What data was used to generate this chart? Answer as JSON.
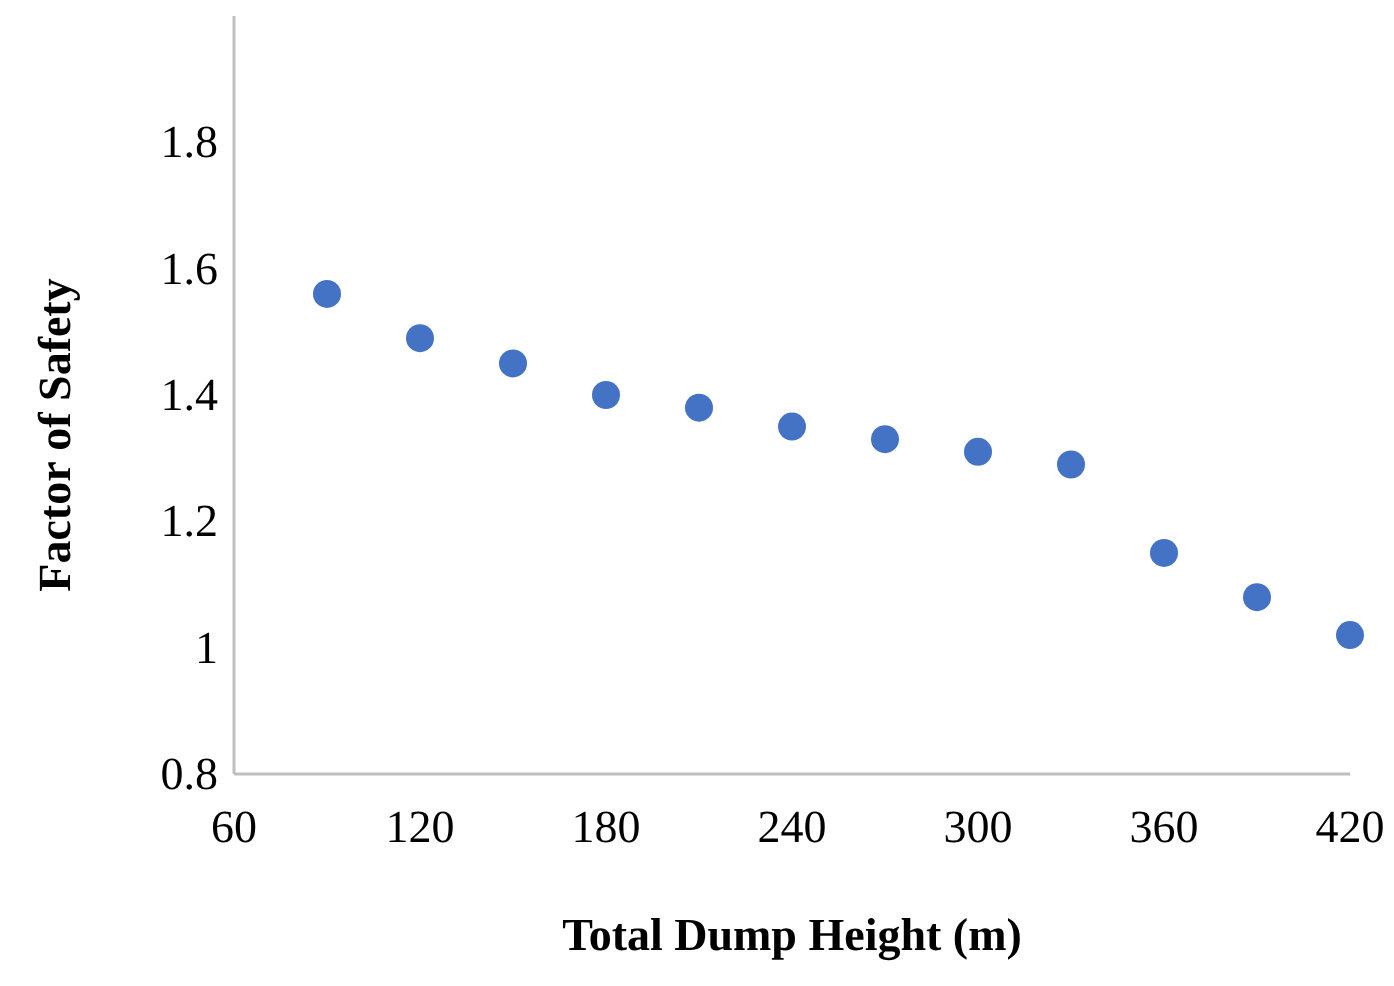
{
  "chart_data": {
    "type": "scatter",
    "xlabel": "Total Dump Height (m)",
    "ylabel": "Factor of Safety",
    "x": [
      90,
      120,
      150,
      180,
      210,
      240,
      270,
      300,
      330,
      360,
      390,
      420
    ],
    "series": [
      {
        "color": "#4472c4",
        "values": [
          1.56,
          1.49,
          1.45,
          1.4,
          1.38,
          1.35,
          1.33,
          1.31,
          1.29,
          1.15,
          1.08,
          1.02
        ]
      }
    ],
    "xlim": [
      60,
      420
    ],
    "xticks": [
      60,
      120,
      180,
      240,
      300,
      360,
      420
    ],
    "ylim": [
      0.8,
      2.0
    ],
    "yticks": [
      0.8,
      1,
      1.2,
      1.4,
      1.6,
      1.8
    ],
    "grid": false,
    "marker": "circle"
  }
}
